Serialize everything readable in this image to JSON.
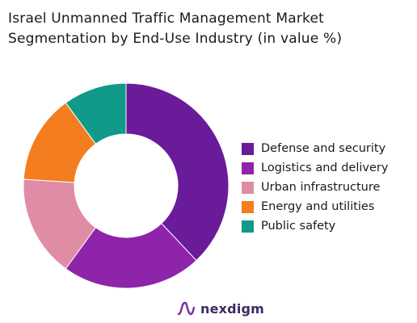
{
  "chart_data": {
    "type": "pie",
    "title_lines": [
      "Israel Unmanned Traffic Management Market",
      "Segmentation by End-Use Industry (in value %)"
    ],
    "donut": true,
    "categories": [
      "Defense and security",
      "Logistics and delivery",
      "Urban infrastructure",
      "Energy and utilities",
      "Public safety"
    ],
    "values": [
      38,
      22,
      16,
      14,
      10
    ],
    "colors": [
      "#6a1b9a",
      "#8e24aa",
      "#e08ca4",
      "#f47d20",
      "#11998a"
    ],
    "legend_position": "right"
  },
  "brand": {
    "name": "nexdigm",
    "icon": "nexdigm-logo-icon"
  }
}
